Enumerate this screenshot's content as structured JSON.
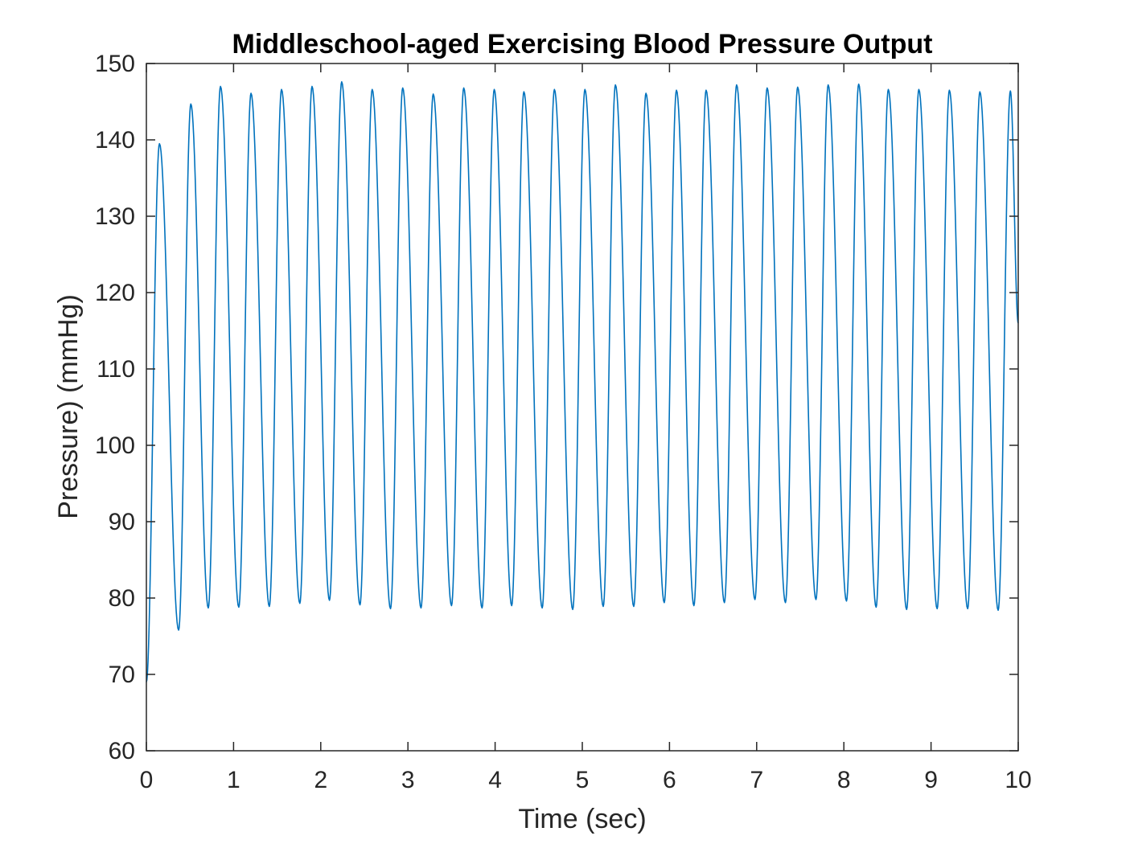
{
  "chart_data": {
    "type": "line",
    "title": "Middleschool-aged Exercising Blood Pressure Output",
    "xlabel": "Time (sec)",
    "ylabel": "Pressure) (mmHg)",
    "xlim": [
      0,
      10
    ],
    "ylim": [
      60,
      150
    ],
    "xticks": [
      0,
      1,
      2,
      3,
      4,
      5,
      6,
      7,
      8,
      9,
      10
    ],
    "yticks": [
      60,
      70,
      80,
      90,
      100,
      110,
      120,
      130,
      140,
      150
    ],
    "grid": false,
    "legend": "none",
    "series": [
      {
        "color": "#0072BD",
        "start": {
          "x": 0,
          "y": 69
        },
        "end": {
          "x": 10,
          "y": 116
        },
        "peaks": [
          {
            "x": 0.15,
            "y": 139.5
          },
          {
            "x": 0.51,
            "y": 144.7
          },
          {
            "x": 0.85,
            "y": 147.0
          },
          {
            "x": 1.2,
            "y": 146.1
          },
          {
            "x": 1.55,
            "y": 146.6
          },
          {
            "x": 1.9,
            "y": 147.0
          },
          {
            "x": 2.24,
            "y": 147.6
          },
          {
            "x": 2.59,
            "y": 146.6
          },
          {
            "x": 2.94,
            "y": 146.8
          },
          {
            "x": 3.29,
            "y": 146.0
          },
          {
            "x": 3.64,
            "y": 146.8
          },
          {
            "x": 3.99,
            "y": 146.6
          },
          {
            "x": 4.33,
            "y": 146.3
          },
          {
            "x": 4.68,
            "y": 146.6
          },
          {
            "x": 5.03,
            "y": 146.6
          },
          {
            "x": 5.38,
            "y": 147.2
          },
          {
            "x": 5.73,
            "y": 146.1
          },
          {
            "x": 6.08,
            "y": 146.5
          },
          {
            "x": 6.42,
            "y": 146.5
          },
          {
            "x": 6.77,
            "y": 147.2
          },
          {
            "x": 7.12,
            "y": 146.8
          },
          {
            "x": 7.47,
            "y": 146.9
          },
          {
            "x": 7.82,
            "y": 147.2
          },
          {
            "x": 8.17,
            "y": 147.3
          },
          {
            "x": 8.51,
            "y": 146.6
          },
          {
            "x": 8.86,
            "y": 146.6
          },
          {
            "x": 9.21,
            "y": 146.5
          },
          {
            "x": 9.56,
            "y": 146.3
          },
          {
            "x": 9.91,
            "y": 146.4
          }
        ],
        "troughs": [
          {
            "x": 0.37,
            "y": 75.8
          },
          {
            "x": 0.71,
            "y": 78.7
          },
          {
            "x": 1.06,
            "y": 78.8
          },
          {
            "x": 1.41,
            "y": 78.9
          },
          {
            "x": 1.76,
            "y": 79.3
          },
          {
            "x": 2.1,
            "y": 79.7
          },
          {
            "x": 2.45,
            "y": 79.1
          },
          {
            "x": 2.8,
            "y": 78.6
          },
          {
            "x": 3.15,
            "y": 78.7
          },
          {
            "x": 3.5,
            "y": 79.0
          },
          {
            "x": 3.85,
            "y": 78.7
          },
          {
            "x": 4.19,
            "y": 79.0
          },
          {
            "x": 4.54,
            "y": 78.7
          },
          {
            "x": 4.89,
            "y": 78.5
          },
          {
            "x": 5.24,
            "y": 78.9
          },
          {
            "x": 5.59,
            "y": 78.9
          },
          {
            "x": 5.94,
            "y": 79.4
          },
          {
            "x": 6.28,
            "y": 79.0
          },
          {
            "x": 6.63,
            "y": 79.4
          },
          {
            "x": 6.98,
            "y": 79.8
          },
          {
            "x": 7.33,
            "y": 79.4
          },
          {
            "x": 7.68,
            "y": 79.8
          },
          {
            "x": 8.03,
            "y": 79.6
          },
          {
            "x": 8.37,
            "y": 78.8
          },
          {
            "x": 8.72,
            "y": 78.5
          },
          {
            "x": 9.07,
            "y": 78.6
          },
          {
            "x": 9.42,
            "y": 78.6
          },
          {
            "x": 9.77,
            "y": 78.4
          }
        ]
      }
    ]
  }
}
